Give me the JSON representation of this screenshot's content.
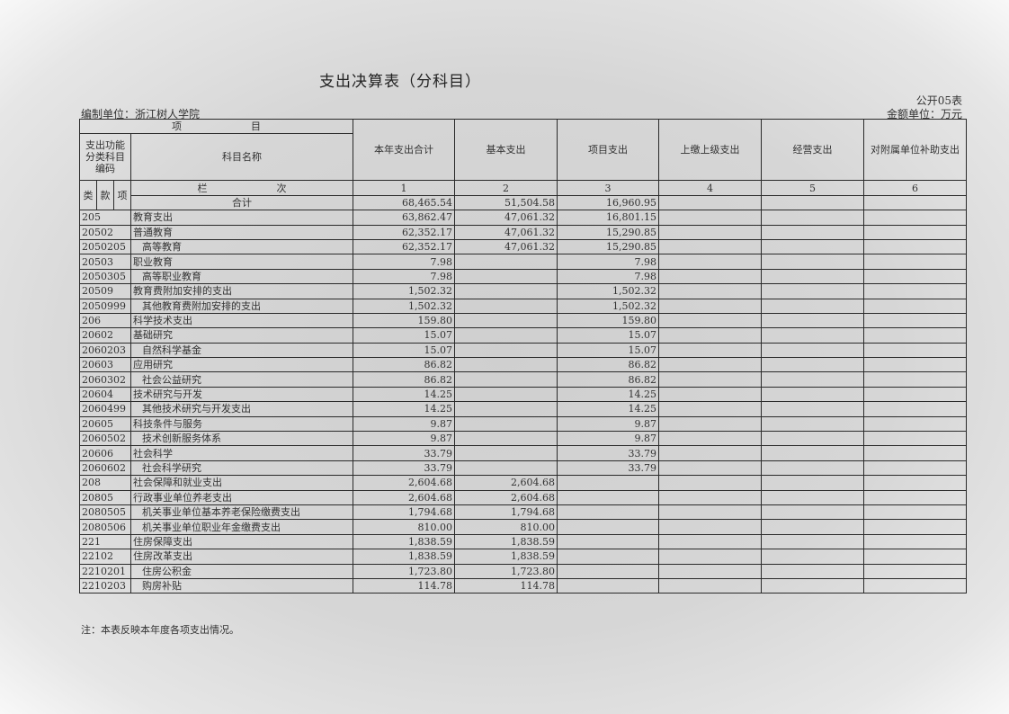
{
  "title": "支出决算表（分科目）",
  "org_label": "编制单位：浙江树人学院",
  "form_no": "公开05表",
  "money_unit": "金额单位：万元",
  "header": {
    "item": "项　　　　　　　目",
    "code_label": "支出功能分类科目编码",
    "name_label": "科目名称",
    "columns": [
      "本年支出合计",
      "基本支出",
      "项目支出",
      "上缴上级支出",
      "经营支出",
      "对附属单位补助支出"
    ],
    "lei": "类",
    "kuan": "款",
    "xiang": "项",
    "lanci": "栏　　　　　　　次",
    "col_numbers": [
      "1",
      "2",
      "3",
      "4",
      "5",
      "6"
    ]
  },
  "total": {
    "label": "合计",
    "values": [
      "68,465.54",
      "51,504.58",
      "16,960.95",
      "",
      "",
      ""
    ]
  },
  "rows": [
    {
      "code": "205",
      "name": "教育支出",
      "level": 1,
      "values": [
        "63,862.47",
        "47,061.32",
        "16,801.15",
        "",
        "",
        ""
      ]
    },
    {
      "code": "20502",
      "name": "普通教育",
      "level": 1,
      "values": [
        "62,352.17",
        "47,061.32",
        "15,290.85",
        "",
        "",
        ""
      ]
    },
    {
      "code": "2050205",
      "name": "高等教育",
      "level": 2,
      "values": [
        "62,352.17",
        "47,061.32",
        "15,290.85",
        "",
        "",
        ""
      ]
    },
    {
      "code": "20503",
      "name": "职业教育",
      "level": 1,
      "values": [
        "7.98",
        "",
        "7.98",
        "",
        "",
        ""
      ]
    },
    {
      "code": "2050305",
      "name": "高等职业教育",
      "level": 2,
      "values": [
        "7.98",
        "",
        "7.98",
        "",
        "",
        ""
      ]
    },
    {
      "code": "20509",
      "name": "教育费附加安排的支出",
      "level": 1,
      "values": [
        "1,502.32",
        "",
        "1,502.32",
        "",
        "",
        ""
      ]
    },
    {
      "code": "2050999",
      "name": "其他教育费附加安排的支出",
      "level": 2,
      "values": [
        "1,502.32",
        "",
        "1,502.32",
        "",
        "",
        ""
      ]
    },
    {
      "code": "206",
      "name": "科学技术支出",
      "level": 1,
      "values": [
        "159.80",
        "",
        "159.80",
        "",
        "",
        ""
      ]
    },
    {
      "code": "20602",
      "name": "基础研究",
      "level": 1,
      "values": [
        "15.07",
        "",
        "15.07",
        "",
        "",
        ""
      ]
    },
    {
      "code": "2060203",
      "name": "自然科学基金",
      "level": 2,
      "values": [
        "15.07",
        "",
        "15.07",
        "",
        "",
        ""
      ]
    },
    {
      "code": "20603",
      "name": "应用研究",
      "level": 1,
      "values": [
        "86.82",
        "",
        "86.82",
        "",
        "",
        ""
      ]
    },
    {
      "code": "2060302",
      "name": "社会公益研究",
      "level": 2,
      "values": [
        "86.82",
        "",
        "86.82",
        "",
        "",
        ""
      ]
    },
    {
      "code": "20604",
      "name": "技术研究与开发",
      "level": 1,
      "values": [
        "14.25",
        "",
        "14.25",
        "",
        "",
        ""
      ]
    },
    {
      "code": "2060499",
      "name": "其他技术研究与开发支出",
      "level": 2,
      "values": [
        "14.25",
        "",
        "14.25",
        "",
        "",
        ""
      ]
    },
    {
      "code": "20605",
      "name": "科技条件与服务",
      "level": 1,
      "values": [
        "9.87",
        "",
        "9.87",
        "",
        "",
        ""
      ]
    },
    {
      "code": "2060502",
      "name": "技术创新服务体系",
      "level": 2,
      "values": [
        "9.87",
        "",
        "9.87",
        "",
        "",
        ""
      ]
    },
    {
      "code": "20606",
      "name": "社会科学",
      "level": 1,
      "values": [
        "33.79",
        "",
        "33.79",
        "",
        "",
        ""
      ]
    },
    {
      "code": "2060602",
      "name": "社会科学研究",
      "level": 2,
      "values": [
        "33.79",
        "",
        "33.79",
        "",
        "",
        ""
      ]
    },
    {
      "code": "208",
      "name": "社会保障和就业支出",
      "level": 1,
      "values": [
        "2,604.68",
        "2,604.68",
        "",
        "",
        "",
        ""
      ]
    },
    {
      "code": "20805",
      "name": "行政事业单位养老支出",
      "level": 1,
      "values": [
        "2,604.68",
        "2,604.68",
        "",
        "",
        "",
        ""
      ]
    },
    {
      "code": "2080505",
      "name": "机关事业单位基本养老保险缴费支出",
      "level": 2,
      "values": [
        "1,794.68",
        "1,794.68",
        "",
        "",
        "",
        ""
      ]
    },
    {
      "code": "2080506",
      "name": "机关事业单位职业年金缴费支出",
      "level": 2,
      "values": [
        "810.00",
        "810.00",
        "",
        "",
        "",
        ""
      ]
    },
    {
      "code": "221",
      "name": "住房保障支出",
      "level": 1,
      "values": [
        "1,838.59",
        "1,838.59",
        "",
        "",
        "",
        ""
      ]
    },
    {
      "code": "22102",
      "name": "住房改革支出",
      "level": 1,
      "values": [
        "1,838.59",
        "1,838.59",
        "",
        "",
        "",
        ""
      ]
    },
    {
      "code": "2210201",
      "name": "住房公积金",
      "level": 2,
      "values": [
        "1,723.80",
        "1,723.80",
        "",
        "",
        "",
        ""
      ]
    },
    {
      "code": "2210203",
      "name": "购房补贴",
      "level": 2,
      "values": [
        "114.78",
        "114.78",
        "",
        "",
        "",
        ""
      ]
    }
  ],
  "note": "注：本表反映本年度各项支出情况。"
}
